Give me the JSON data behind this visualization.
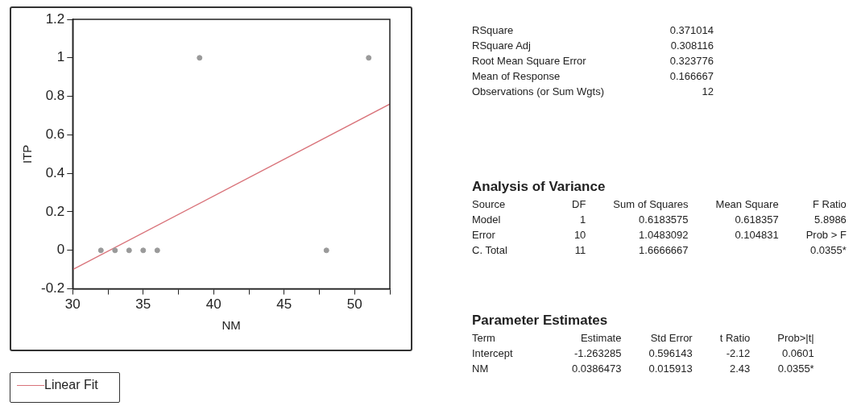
{
  "chart_data": [
    {
      "type": "scatter",
      "xlabel": "NM",
      "ylabel": "ITP",
      "xlim": [
        30,
        52.5
      ],
      "ylim": [
        -0.2,
        1.2
      ],
      "xticks": [
        30,
        {
          "value": 32.5,
          "label": null
        },
        35,
        {
          "value": 37.5,
          "label": null
        },
        40,
        {
          "value": 42.5,
          "label": null
        },
        45,
        {
          "value": 47.5,
          "label": null
        },
        50,
        {
          "value": 52.5,
          "label": null
        }
      ],
      "yticks": [
        -0.2,
        0,
        0.2,
        0.4,
        0.6,
        0.8,
        1,
        1.2
      ],
      "grid": false,
      "marker": "circle",
      "legend": "bottom left",
      "series": [
        {
          "type": "scatter",
          "color": "#9a9a9a",
          "x": [
            32,
            33,
            34,
            35,
            36,
            39,
            48,
            51
          ],
          "values": [
            0,
            0,
            0,
            0,
            0,
            1,
            0,
            1
          ]
        },
        {
          "type": "line",
          "name": "Linear Fit",
          "color": "#d9737a",
          "marker": "none",
          "x": [
            30,
            52.5
          ],
          "values": [
            -0.1,
            0.76
          ]
        }
      ]
    },
    {
      "type": "other",
      "annotations": [
        "RSquare",
        "0.371014",
        "RSquare Adj",
        "0.308116",
        "Root Mean Square Error",
        "0.323776",
        "Mean of Response",
        "0.166667",
        "Observations (or Sum Wgts)",
        "12"
      ]
    },
    {
      "type": "other",
      "title": "Analysis of Variance",
      "categories": [
        "Source",
        "DF",
        "Sum of Squares",
        "Mean Square",
        "F Ratio"
      ],
      "annotations": [
        "Model",
        "1",
        "0.6183575",
        "0.618357",
        "5.8986",
        "Error",
        "10",
        "1.0483092",
        "0.104831",
        "Prob > F",
        "C. Total",
        "11",
        "1.6666667",
        null,
        "0.0355*"
      ]
    },
    {
      "type": "other",
      "title": "Parameter Estimates",
      "categories": [
        "Term",
        "Estimate",
        "Std Error",
        "t Ratio",
        "Prob>|t|"
      ],
      "annotations": [
        "Intercept",
        "-1.263285",
        "0.596143",
        "-2.12",
        "0.0601",
        "NM",
        "0.0386473",
        "0.015913",
        "2.43",
        "0.0355*"
      ]
    }
  ]
}
